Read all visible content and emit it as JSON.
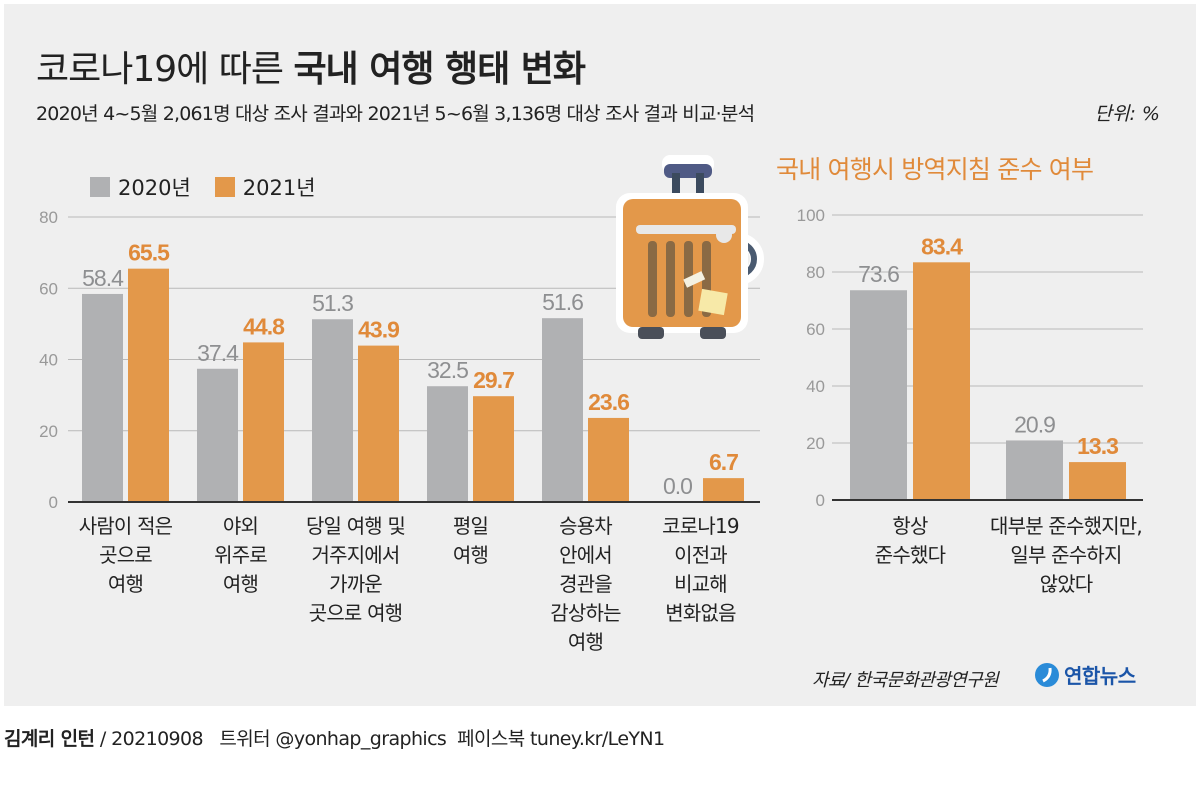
{
  "title_light": "코로나19에 따른",
  "title_bold": "국내 여행 행태 변화",
  "subtitle": "2020년 4~5월 2,061명 대상 조사 결과와 2021년 5~6월 3,136명 대상 조사 결과 비교·분석",
  "unit": "단위: %",
  "legend": [
    {
      "label": "2020년",
      "color": "#b0b1b3"
    },
    {
      "label": "2021년",
      "color": "#e3984a"
    }
  ],
  "colors": {
    "gray": "#b0b1b3",
    "orange": "#e3984a",
    "gray_label": "#8e8f91",
    "orange_label": "#e08a3a"
  },
  "chart_data": [
    {
      "type": "bar",
      "title": "",
      "xlabel": "",
      "ylabel": "",
      "ylim": [
        0,
        80
      ],
      "yticks": [
        "0",
        "20",
        "40",
        "60",
        "80"
      ],
      "categories": [
        "사람이 적은\n곳으로\n여행",
        "야외\n위주로\n여행",
        "당일 여행 및\n거주지에서\n가까운\n곳으로 여행",
        "평일\n여행",
        "승용차\n안에서\n경관을\n감상하는\n여행",
        "코로나19\n이전과\n비교해\n변화없음"
      ],
      "series": [
        {
          "name": "2020년",
          "values": [
            58.4,
            37.4,
            51.3,
            32.5,
            51.6,
            0.0
          ],
          "labels": [
            "58.4",
            "37.4",
            "51.3",
            "32.5",
            "51.6",
            "0.0"
          ]
        },
        {
          "name": "2021년",
          "values": [
            65.5,
            44.8,
            43.9,
            29.7,
            23.6,
            6.7
          ],
          "labels": [
            "65.5",
            "44.8",
            "43.9",
            "29.7",
            "23.6",
            "6.7"
          ]
        }
      ],
      "grid": true,
      "legend": "top-left"
    },
    {
      "type": "bar",
      "title": "국내 여행시 방역지침 준수 여부",
      "xlabel": "",
      "ylabel": "",
      "ylim": [
        0,
        100
      ],
      "yticks": [
        "0",
        "20",
        "40",
        "60",
        "80",
        "100"
      ],
      "categories": [
        "항상\n준수했다",
        "대부분 준수했지만,\n일부 준수하지\n않았다"
      ],
      "series": [
        {
          "name": "2020년",
          "values": [
            73.6,
            20.9
          ],
          "labels": [
            "73.6",
            "20.9"
          ]
        },
        {
          "name": "2021년",
          "values": [
            83.4,
            13.3
          ],
          "labels": [
            "83.4",
            "13.3"
          ]
        }
      ],
      "grid": true
    }
  ],
  "source": "자료/ 한국문화관광연구원",
  "logo_text": "연합뉴스",
  "footer": {
    "author": "김계리 인턴",
    "rest": "/ 20210908   트위터 @yonhap_graphics  페이스북 tuney.kr/LeYN1"
  },
  "icon": "suitcase-icon"
}
